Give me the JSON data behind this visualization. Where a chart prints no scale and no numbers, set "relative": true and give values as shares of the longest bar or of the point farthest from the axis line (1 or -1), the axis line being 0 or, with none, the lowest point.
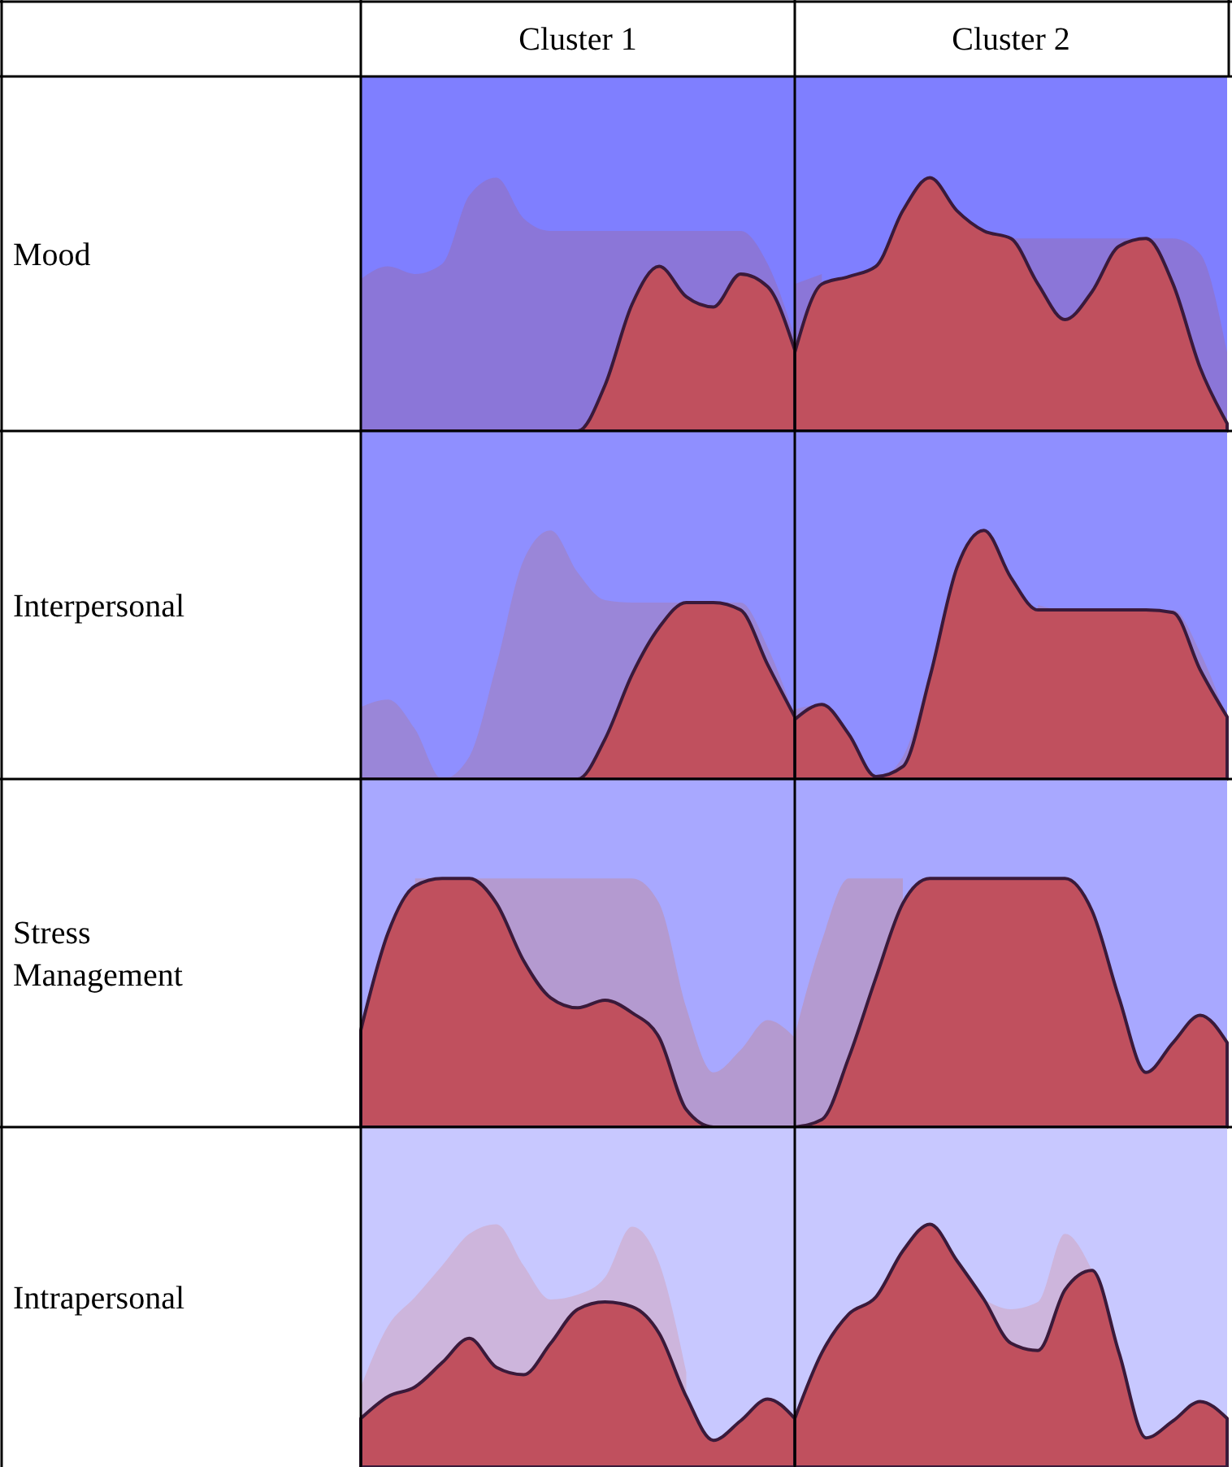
{
  "chart_data": [
    {
      "type": "area",
      "title": "Cluster 1",
      "ylabel": "Mood",
      "relative": true,
      "categories": [
        null,
        null,
        null,
        null,
        null,
        null,
        null,
        null,
        null,
        null,
        null,
        null,
        null,
        null,
        null,
        null,
        null
      ],
      "series": [
        {
          "color": "#8b76d8",
          "values": [
            0.6,
            0.65,
            0.62,
            0.66,
            0.93,
            1,
            0.84,
            0.79,
            0.79,
            0.79,
            0.79,
            0.79,
            0.79,
            0.79,
            0.79,
            0.66,
            0.37
          ]
        },
        {
          "color": "#c0505e",
          "values": [
            0,
            0,
            0,
            0,
            0,
            0,
            0,
            0,
            0,
            0.18,
            0.5,
            0.65,
            0.53,
            0.49,
            0.62,
            0.57,
            0.32
          ]
        }
      ]
    },
    {
      "type": "area",
      "title": "Cluster 2",
      "relative": true,
      "categories": [
        null,
        null,
        null,
        null,
        null,
        null,
        null,
        null,
        null,
        null,
        null,
        null,
        null,
        null,
        null,
        null,
        null
      ],
      "series": [
        {
          "color": "#8b76d8",
          "values": [
            0.58,
            0.62,
            null,
            null,
            null,
            null,
            null,
            null,
            0.76,
            0.76,
            0.76,
            0.76,
            0.76,
            0.76,
            0.76,
            0.7,
            0.31
          ]
        },
        {
          "color": "#c0505e",
          "values": [
            0.31,
            0.58,
            0.61,
            0.65,
            0.87,
            1,
            0.87,
            0.79,
            0.76,
            0.58,
            0.44,
            0.55,
            0.73,
            0.76,
            0.58,
            0.25,
            0.03
          ]
        }
      ]
    },
    {
      "type": "area",
      "ylabel": "Interpersonal",
      "relative": true,
      "categories": [
        null,
        null,
        null,
        null,
        null,
        null,
        null,
        null,
        null,
        null,
        null,
        null,
        null,
        null,
        null,
        null,
        null
      ],
      "series": [
        {
          "color": "#9a86d8",
          "values": [
            0.29,
            0.32,
            0.2,
            0,
            0.09,
            0.46,
            0.88,
            1,
            0.83,
            0.72,
            0.71,
            0.71,
            0.71,
            0.71,
            0.71,
            0.53,
            0.25
          ]
        },
        {
          "color": "#c0505e",
          "values": [
            0,
            0,
            0,
            0,
            0,
            0,
            0,
            0,
            0,
            0.16,
            0.42,
            0.61,
            0.71,
            0.71,
            0.68,
            0.46,
            0.25
          ]
        }
      ]
    },
    {
      "type": "area",
      "relative": true,
      "categories": [
        null,
        null,
        null,
        null,
        null,
        null,
        null,
        null,
        null,
        null,
        null,
        null,
        null,
        null,
        null,
        null,
        null
      ],
      "series": [
        {
          "color": "#9a86d8",
          "values": [
            0.28,
            0.3,
            0.19,
            0,
            0.09,
            0.44,
            null,
            null,
            null,
            0.7,
            0.68,
            0.68,
            0.68,
            0.68,
            0.68,
            0.51,
            0.24
          ]
        },
        {
          "color": "#c0505e",
          "values": [
            0.24,
            0.3,
            0.18,
            0.01,
            0.05,
            0.41,
            0.85,
            1,
            0.81,
            0.68,
            0.68,
            0.68,
            0.68,
            0.68,
            0.67,
            0.44,
            0.25
          ]
        }
      ]
    },
    {
      "type": "area",
      "ylabel": "Stress Management",
      "relative": true,
      "categories": [
        null,
        null,
        null,
        null,
        null,
        null,
        null,
        null,
        null,
        null,
        null,
        null,
        null,
        null,
        null,
        null,
        null
      ],
      "series": [
        {
          "color": "#b49ad0",
          "values": [
            null,
            null,
            1,
            1,
            1,
            1,
            1,
            1,
            1,
            1,
            1,
            0.9,
            0.48,
            0.22,
            0.31,
            0.43,
            0.36
          ]
        },
        {
          "color": "#c0505e",
          "values": [
            0.39,
            0.78,
            0.97,
            1,
            1,
            0.9,
            0.67,
            0.52,
            0.48,
            0.51,
            0.46,
            0.36,
            0.07,
            0,
            0,
            0,
            0
          ]
        }
      ]
    },
    {
      "type": "area",
      "relative": true,
      "categories": [
        null,
        null,
        null,
        null,
        null,
        null,
        null,
        null,
        null,
        null,
        null,
        null,
        null,
        null,
        null,
        null,
        null
      ],
      "series": [
        {
          "color": "#b49ad0",
          "values": [
            0.37,
            0.75,
            1,
            1,
            1,
            null,
            null,
            null,
            null,
            null,
            null,
            null,
            null,
            null,
            null,
            null,
            null
          ]
        },
        {
          "color": "#c0505e",
          "values": [
            0,
            0.03,
            0.28,
            0.6,
            0.9,
            1,
            1,
            1,
            1,
            1,
            1,
            0.87,
            0.52,
            0.22,
            0.34,
            0.45,
            0.34
          ]
        }
      ]
    },
    {
      "type": "area",
      "ylabel": "Intrapersonal",
      "relative": true,
      "categories": [
        null,
        null,
        null,
        null,
        null,
        null,
        null,
        null,
        null,
        null,
        null,
        null,
        null,
        null,
        null,
        null,
        null
      ],
      "series": [
        {
          "color": "#cdb5dc",
          "values": [
            0.33,
            0.58,
            0.7,
            0.83,
            0.96,
            1,
            0.83,
            0.69,
            0.71,
            0.78,
            0.99,
            0.84,
            0.39,
            null,
            null,
            null,
            null
          ]
        },
        {
          "color": "#c0505e",
          "values": [
            0.2,
            0.29,
            0.33,
            0.43,
            0.53,
            0.41,
            0.38,
            0.51,
            0.65,
            0.68,
            0.66,
            0.55,
            0.29,
            0.11,
            0.19,
            0.28,
            0.2
          ]
        }
      ]
    },
    {
      "type": "area",
      "relative": true,
      "categories": [
        null,
        null,
        null,
        null,
        null,
        null,
        null,
        null,
        null,
        null,
        null,
        null,
        null,
        null,
        null,
        null,
        null
      ],
      "series": [
        {
          "color": "#cdb5dc",
          "values": [
            null,
            null,
            null,
            null,
            null,
            null,
            null,
            0.69,
            0.65,
            0.68,
            0.96,
            0.81,
            null,
            null,
            null,
            null,
            null
          ]
        },
        {
          "color": "#c0505e",
          "values": [
            0.2,
            0.47,
            0.63,
            0.7,
            0.89,
            1,
            0.85,
            0.69,
            0.51,
            0.48,
            0.73,
            0.81,
            0.47,
            0.12,
            0.19,
            0.27,
            0.2
          ]
        }
      ]
    }
  ]
}
